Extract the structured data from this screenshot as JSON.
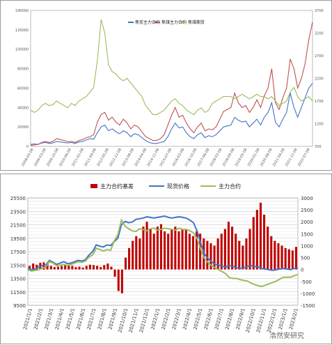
{
  "chart_data": [
    {
      "type": "line",
      "title": "",
      "xlabel": "",
      "ylabel": "",
      "ylim": [
        0,
        140000
      ],
      "y2lim": [
        700,
        3700
      ],
      "yticks": [
        0,
        20000,
        40000,
        60000,
        80000,
        100000,
        120000,
        140000
      ],
      "y2ticks": [
        700,
        1200,
        1700,
        2200,
        2700,
        3200,
        3700
      ],
      "grid": false,
      "legend_position": "top-right",
      "x_labels": [
        "2008-05-08",
        "2009-03-08",
        "2009-10-08",
        "2010-06-08",
        "2011-02-08",
        "2011-09-08",
        "2012-05-08",
        "2012-12-08",
        "2013-08-08",
        "2014-04-08",
        "2014-11-08",
        "2015-07-08",
        "2016-03-08",
        "2016-10-08",
        "2017-06-08",
        "2018-02-08",
        "2018-09-08",
        "2019-05-08",
        "2020-01-08",
        "2020-08-08",
        "2021-04-08",
        "2021-11-08",
        "2022-07-08"
      ],
      "series": [
        {
          "name": "焦炭主力合约",
          "axis": "left",
          "color": "#4472c4",
          "values": [
            2000,
            2500,
            2000,
            3500,
            4000,
            3000,
            3500,
            5000,
            4500,
            4000,
            3500,
            4000,
            3000,
            4500,
            5000,
            6500,
            8000,
            7500,
            14000,
            20000,
            22000,
            16000,
            18000,
            15000,
            13000,
            16000,
            14000,
            10000,
            13000,
            12000,
            9000,
            6000,
            4000,
            3000,
            3000,
            4000,
            5000,
            10000,
            18000,
            24000,
            19000,
            20000,
            14000,
            10000,
            8000,
            12000,
            14000,
            9000,
            11000,
            10000,
            12000,
            16000,
            20000,
            21000,
            22000,
            30000,
            27000,
            25000,
            26000,
            20000,
            24000,
            28000,
            22000,
            30000,
            35000,
            45000,
            25000,
            20000,
            28000,
            35000,
            55000,
            40000,
            30000,
            40000,
            50000,
            60000,
            65000
          ]
        },
        {
          "name": "焦煤主力合约",
          "axis": "left",
          "color": "#c0504d",
          "values": [
            1000,
            1500,
            2000,
            4000,
            5000,
            4000,
            5000,
            8000,
            7000,
            6000,
            5000,
            5000,
            4000,
            6000,
            7000,
            9000,
            10000,
            12000,
            25000,
            33000,
            35000,
            27000,
            30000,
            25000,
            22000,
            28000,
            24000,
            18000,
            22000,
            20000,
            15000,
            10000,
            8000,
            6000,
            6000,
            8000,
            12000,
            22000,
            32000,
            40000,
            30000,
            32000,
            24000,
            18000,
            14000,
            20000,
            24000,
            16000,
            18000,
            17000,
            20000,
            28000,
            36000,
            38000,
            40000,
            55000,
            45000,
            40000,
            42000,
            35000,
            40000,
            48000,
            40000,
            52000,
            60000,
            80000,
            45000,
            38000,
            50000,
            60000,
            90000,
            80000,
            60000,
            70000,
            85000,
            110000,
            128000
          ]
        },
        {
          "name": "焦煤期货",
          "axis": "right",
          "color": "#9bbb59",
          "values": [
            1500,
            1450,
            1500,
            1600,
            1650,
            1600,
            1620,
            1700,
            1650,
            1600,
            1550,
            1650,
            1600,
            1700,
            1750,
            1800,
            1900,
            2000,
            2600,
            3500,
            3200,
            2500,
            2350,
            2300,
            2200,
            2150,
            2200,
            2100,
            2000,
            1900,
            1800,
            1600,
            1500,
            1400,
            1400,
            1450,
            1500,
            1600,
            1700,
            1750,
            1650,
            1600,
            1500,
            1450,
            1400,
            1500,
            1550,
            1450,
            1500,
            1650,
            1700,
            1750,
            1800,
            1800,
            1800,
            1750,
            1800,
            1850,
            1800,
            1750,
            1800,
            1850,
            1800,
            1800,
            1750,
            1800,
            1700,
            1600,
            1650,
            1700,
            1900,
            2000,
            1800,
            1700,
            1750,
            1800,
            1700
          ]
        }
      ]
    },
    {
      "type": "bar",
      "title": "",
      "xlabel": "",
      "ylabel": "",
      "ylim": [
        9500,
        25500
      ],
      "y2lim": [
        -1500,
        3000
      ],
      "yticks": [
        9500,
        11500,
        13500,
        15500,
        17500,
        19500,
        21500,
        23500,
        25500
      ],
      "y2ticks": [
        -1500,
        -1000,
        -500,
        0,
        500,
        1000,
        1500,
        2000,
        2500,
        3000
      ],
      "grid": true,
      "legend_position": "top",
      "x_labels": [
        "2021/1/1",
        "2021/2/1",
        "2021/3/1",
        "2021/4/1",
        "2021/5/1",
        "2021/6/1",
        "2021/7/1",
        "2021/8/1",
        "2021/9/1",
        "2021/10/1",
        "2021/11/1",
        "2021/12/1",
        "2022/1/1",
        "2022/2/1",
        "2022/3/1",
        "2022/4/1",
        "2022/5/1",
        "2022/6/1",
        "2022/7/1",
        "2022/8/1",
        "2022/9/1",
        "2022/10/1",
        "2022/11/1",
        "2022/12/1",
        "2023/1/1",
        "2023/2/1"
      ],
      "series": [
        {
          "name": "主力合约基差",
          "axis": "right",
          "color": "#c00000",
          "values": [
            150,
            250,
            200,
            280,
            300,
            250,
            150,
            100,
            120,
            150,
            200,
            180,
            150,
            100,
            120,
            80,
            150,
            200,
            180,
            150,
            100,
            180,
            250,
            120,
            -300,
            -900,
            -1000,
            500,
            900,
            1200,
            1400,
            1300,
            1800,
            2000,
            1700,
            1500,
            1800,
            1900,
            1600,
            1500,
            1700,
            1800,
            1600,
            1700,
            1700,
            1500,
            1400,
            1600,
            1500,
            1300,
            1200,
            1100,
            1000,
            1300,
            1500,
            1700,
            2000,
            1800,
            1500,
            1200,
            1000,
            1300,
            1700,
            2200,
            2500,
            2800,
            2300,
            1800,
            1400,
            1200,
            1100,
            1000,
            900,
            850,
            800,
            950
          ]
        },
        {
          "name": "现货价格",
          "axis": "left",
          "color": "#4472c4",
          "values": [
            15000,
            14800,
            14900,
            15200,
            15400,
            15500,
            16200,
            15900,
            15600,
            15800,
            16000,
            15700,
            15800,
            16000,
            16200,
            16100,
            16300,
            17000,
            17500,
            18500,
            18300,
            18200,
            18500,
            18400,
            19000,
            19500,
            21500,
            22000,
            21800,
            21900,
            22300,
            22400,
            22500,
            22700,
            22600,
            22500,
            22600,
            22700,
            22800,
            22600,
            22500,
            22600,
            22700,
            22600,
            22500,
            22200,
            21800,
            20600,
            18800,
            17200,
            16500,
            16000,
            15600,
            15500,
            15300,
            15200,
            15400,
            15300,
            15100,
            15000,
            15100,
            15300,
            15400,
            15300,
            15200,
            15000,
            14900,
            14800,
            14700,
            14800,
            14900,
            15000,
            14900,
            14800,
            15000,
            15100
          ]
        },
        {
          "name": "主力合约",
          "axis": "left",
          "color": "#9bbb59",
          "values": [
            14800,
            14600,
            14700,
            14800,
            15000,
            15200,
            16000,
            15800,
            15400,
            15500,
            15600,
            15400,
            15600,
            15800,
            16000,
            15900,
            16100,
            16700,
            17000,
            18000,
            17800,
            17600,
            17800,
            17700,
            19100,
            20000,
            22200,
            21300,
            20900,
            20600,
            20500,
            20900,
            20800,
            20600,
            20900,
            21000,
            20700,
            20800,
            21000,
            20900,
            20800,
            20700,
            21000,
            20800,
            20800,
            20600,
            20300,
            19400,
            17900,
            16500,
            15900,
            15400,
            15100,
            14800,
            14500,
            14200,
            13600,
            13500,
            13500,
            13300,
            13200,
            13100,
            12800,
            12600,
            12400,
            12300,
            12500,
            12700,
            12900,
            13100,
            13400,
            13700,
            13700,
            13700,
            13900,
            14100
          ]
        }
      ]
    }
  ],
  "watermark": "浩然安研究"
}
